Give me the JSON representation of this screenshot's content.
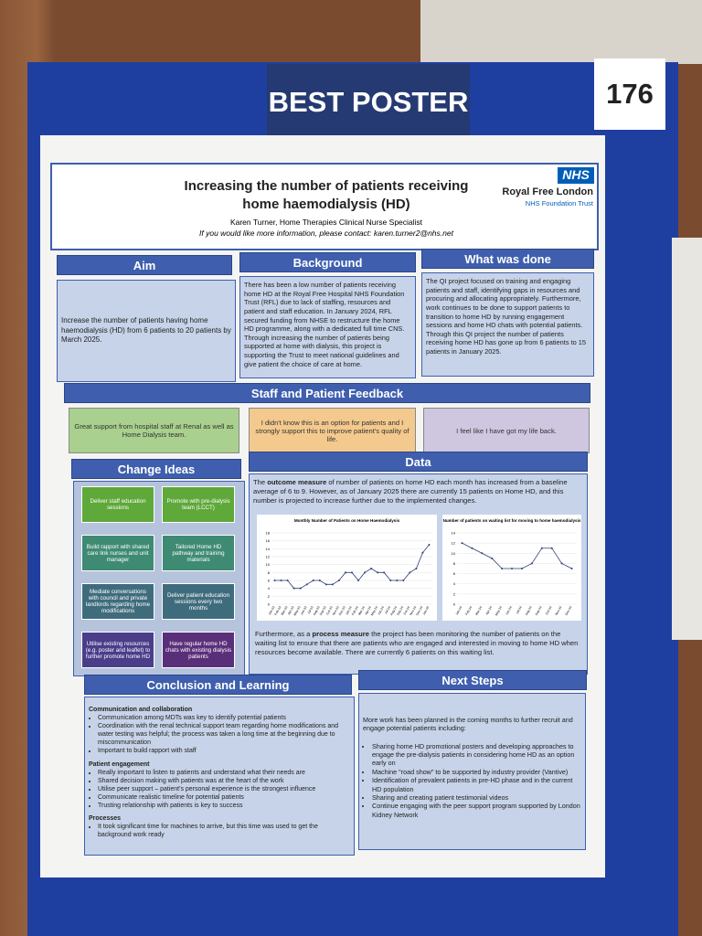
{
  "badge": {
    "label": "BEST POSTER",
    "number": "176"
  },
  "header": {
    "title": "Increasing the number of patients receiving home haemodialysis (HD)",
    "author": "Karen Turner, Home Therapies Clinical Nurse Specialist",
    "contact": "If you would like more information, please contact: karen.turner2@nhs.net",
    "logo": "NHS",
    "org": "Royal Free London",
    "trust": "NHS Foundation Trust"
  },
  "aim": {
    "heading": "Aim",
    "text": "Increase the number of patients having home haemodialysis (HD) from 6 patients to 20 patients by March 2025."
  },
  "background": {
    "heading": "Background",
    "text": "There has been a low number of patients receiving home HD at the Royal Free Hospital NHS Foundation Trust (RFL) due to lack of staffing, resources and patient and staff education. In January 2024, RFL secured funding from NHSE to restructure the home HD programme, along with a dedicated full time CNS. Through increasing the number of patients being supported at home with dialysis, this project is supporting the Trust to meet national guidelines and give patient the choice of care at home."
  },
  "what_was_done": {
    "heading": "What was done",
    "text": "The QI project focused on training and engaging patients and staff, identifying gaps in resources and procuring and allocating appropriately. Furthermore, work continues to be done to support patients to transition to home HD by running engagement sessions and home HD chats with potential patients. Through this QI project the number of patients receiving home HD has gone up from 6 patients to 15 patients in January 2025."
  },
  "feedback": {
    "heading": "Staff and Patient Feedback",
    "quotes": [
      "Great support from hospital staff at Renal as well as Home Dialysis team.",
      "I didn't know this is an option for patients and I strongly support this to improve patient's quality of life.",
      "I feel like I have got my life back."
    ]
  },
  "change_ideas": {
    "heading": "Change Ideas",
    "items": [
      "Deliver staff education sessions",
      "Promote with pre-dialysis team (LCCT)",
      "Build rapport with shared care link nurses and unit manager",
      "Tailored Home HD pathway and training materials",
      "Mediate conversations with council and private landlords regarding home modifications",
      "Deliver patient education sessions every two months",
      "Utilise existing resources (e.g. poster and leaflet) to further promote home HD",
      "Have regular home HD chats with existing dialysis patients"
    ]
  },
  "data_section": {
    "heading": "Data",
    "intro_start": "The",
    "intro_bold": "outcome measure",
    "intro_rest": "of number of patients on home HD each month has increased from a baseline average of 6 to 9. However, as of January 2025 there are currently 15 patients on Home HD, and this number is projected to increase further due to the implemented changes.",
    "charts": [
      {
        "type": "line",
        "title": "Monthly Number of Patients on Home Haemodialysis",
        "categories": [
          "Jan-23",
          "Feb-23",
          "Mar-23",
          "Apr-23",
          "May-23",
          "Jun-23",
          "Jul-23",
          "Aug-23",
          "Sep-23",
          "Oct-23",
          "Nov-23",
          "Dec-23",
          "Jan-24",
          "Feb-24",
          "Mar-24",
          "Apr-24",
          "May-24",
          "Jun-24",
          "Jul-24",
          "Aug-24",
          "Sep-24",
          "Oct-24",
          "Nov-24",
          "Dec-24",
          "Jan-25"
        ],
        "values": [
          6,
          6,
          6,
          4,
          4,
          5,
          6,
          6,
          5,
          5,
          6,
          8,
          8,
          6,
          8,
          9,
          8,
          8,
          6,
          6,
          6,
          8,
          9,
          13,
          15
        ],
        "color": "#2f3f73",
        "ylim": [
          0,
          18
        ],
        "yticks": [
          0,
          2,
          4,
          6,
          8,
          10,
          12,
          14,
          16,
          18
        ]
      },
      {
        "type": "line",
        "title": "Number of patients on waiting list for moving to home haemodialysis",
        "categories": [
          "Jan-24",
          "Feb-24",
          "Mar-24",
          "Apr-24",
          "May-24",
          "Jun-24",
          "Jul-24",
          "Aug-24",
          "Sep-24",
          "Oct-24",
          "Nov-24",
          "Dec-24"
        ],
        "values": [
          12,
          11,
          10,
          9,
          7,
          7,
          7,
          8,
          11,
          11,
          8,
          7
        ],
        "color": "#2f3f73",
        "ylim": [
          0,
          14
        ],
        "yticks": [
          0,
          2,
          4,
          6,
          8,
          10,
          12,
          14
        ]
      }
    ],
    "process_start": "Furthermore, as a",
    "process_bold": "process measure",
    "process_rest": "the project has been monitoring the number of patients on the waiting list to ensure that there are patients who are engaged and interested in moving to home HD when resources become available. There are currently 6 patients on this waiting list."
  },
  "conclusion": {
    "heading": "Conclusion and Learning",
    "groups": [
      {
        "title": "Communication and collaboration",
        "items": [
          "Communication among MDTs was key to identify potential patients",
          "Coordination with the renal technical support team regarding home modifications and water testing was helpful; the process was taken a long time at the beginning due to miscommunication",
          "Important to build rapport with staff"
        ]
      },
      {
        "title": "Patient engagement",
        "items": [
          "Really important to listen to patients and understand what their needs are",
          "Shared decision making with patients was at the heart of the work",
          "Utilise peer support – patient's personal experience is the strongest influence",
          "Communicate realistic timeline for potential patients",
          "Trusting relationship with patients is key to success"
        ]
      },
      {
        "title": "Processes",
        "items": [
          "It took significant time for machines to arrive, but this time was used to get the background work ready"
        ]
      }
    ]
  },
  "next_steps": {
    "heading": "Next Steps",
    "intro": "More work has been planned in the coming months to further recruit and engage potential patients including:",
    "items": [
      "Sharing home HD promotional posters and developing approaches to engage the pre-dialysis patients in considering home HD as an option early on",
      "Machine \"road show\" to be supported by industry provider (Vantive)",
      "Identification of prevalent patients in pre-HD phase and in the current HD population",
      "Sharing and creating patient testimonial videos",
      "Continue engaging with the peer support program supported by London Kidney Network"
    ]
  }
}
